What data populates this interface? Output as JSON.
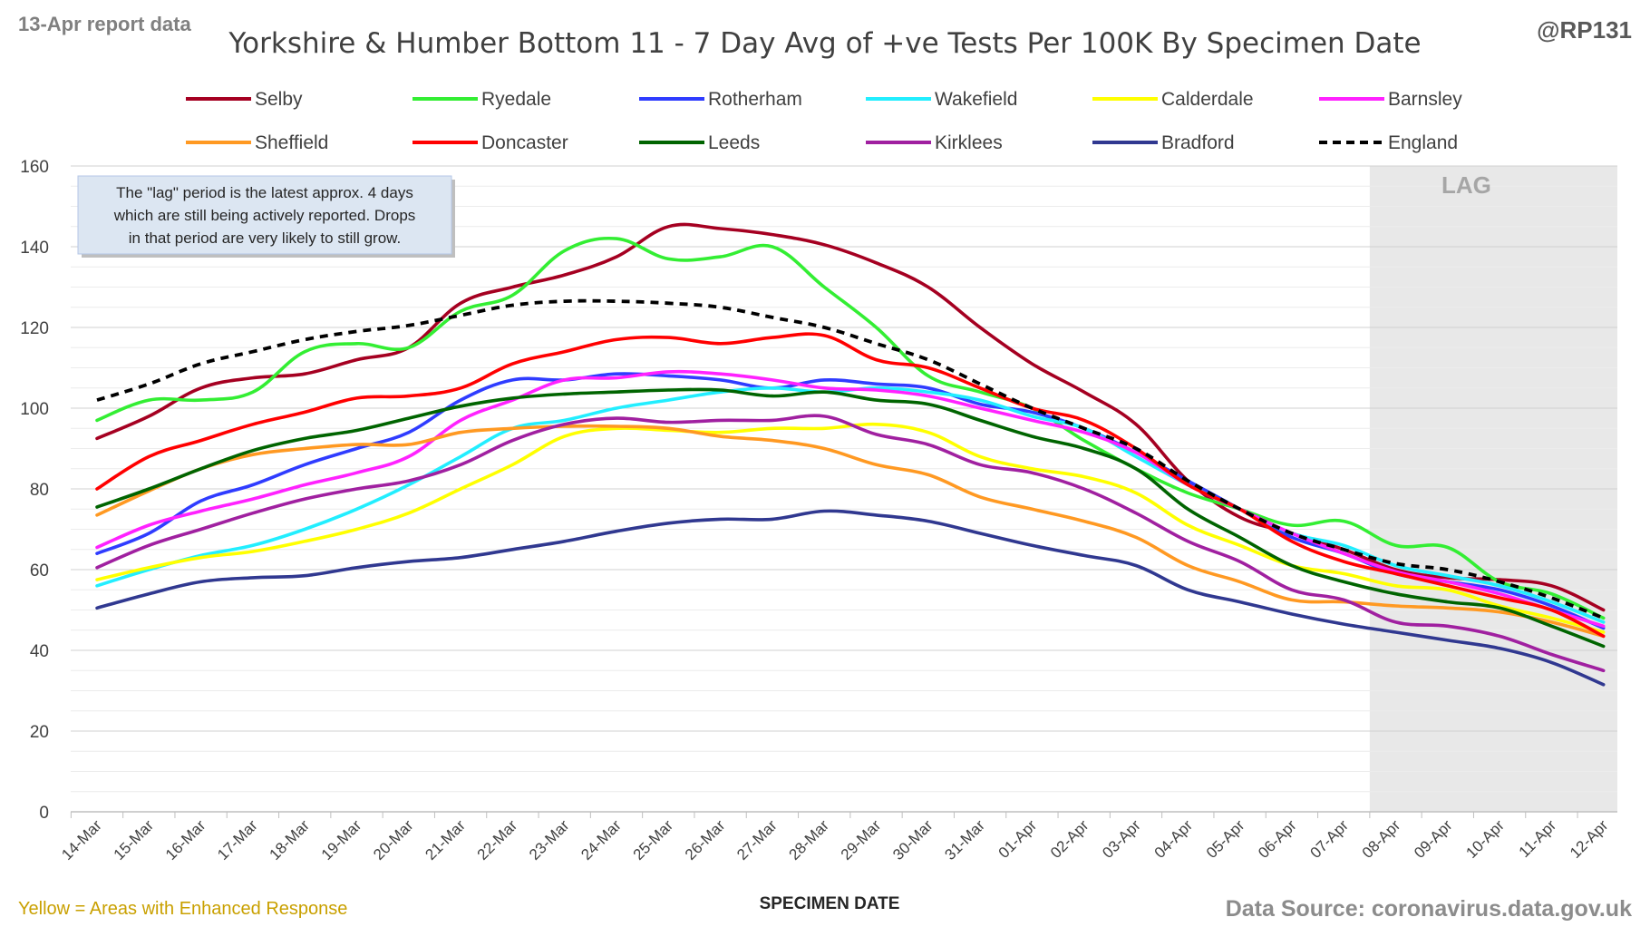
{
  "header": {
    "report_label": "13-Apr report data",
    "handle": "@RP131"
  },
  "footer": {
    "enhanced_note": "Yellow = Areas with Enhanced Response",
    "source": "Data Source: coronavirus.data.gov.uk"
  },
  "colors": {
    "lag_shade": "#e8e8e8",
    "lag_text": "#a6a6a6",
    "grid": "#d9d9d9",
    "note_bg": "#dce6f2",
    "note_border": "#8eaadb",
    "enhanced_note": "#c9a000"
  },
  "chart_data": {
    "type": "line",
    "title": "Yorkshire & Humber Bottom 11 - 7 Day Avg of +ve Tests Per 100K By Specimen Date",
    "xlabel": "SPECIMEN DATE",
    "ylabel": "",
    "ylim": [
      0,
      160
    ],
    "yticks": [
      0,
      20,
      40,
      60,
      80,
      100,
      120,
      140,
      160
    ],
    "grid": true,
    "legend_position": "top",
    "lag_label": "LAG",
    "lag_start_index": 25,
    "note": "The \"lag\" period is the latest approx. 4 days which are still being actively reported. Drops in that period are very likely to still grow.",
    "note_lines": [
      "The \"lag\" period is the latest approx. 4 days",
      "which are still being actively reported.  Drops",
      "in that period are very likely to still grow."
    ],
    "categories": [
      "14-Mar",
      "15-Mar",
      "16-Mar",
      "17-Mar",
      "18-Mar",
      "19-Mar",
      "20-Mar",
      "21-Mar",
      "22-Mar",
      "23-Mar",
      "24-Mar",
      "25-Mar",
      "26-Mar",
      "27-Mar",
      "28-Mar",
      "29-Mar",
      "30-Mar",
      "31-Mar",
      "01-Apr",
      "02-Apr",
      "03-Apr",
      "04-Apr",
      "05-Apr",
      "06-Apr",
      "07-Apr",
      "08-Apr",
      "09-Apr",
      "10-Apr",
      "11-Apr",
      "12-Apr"
    ],
    "series": [
      {
        "name": "Selby",
        "color": "#a50021",
        "dashed": false,
        "values": [
          92.5,
          98,
          105,
          107.5,
          108.5,
          112,
          115,
          126,
          130,
          133,
          137.5,
          145,
          144.5,
          143,
          140.5,
          136,
          130,
          120,
          111,
          104,
          96,
          82,
          73,
          69,
          65,
          60,
          58,
          57.5,
          56,
          50
        ]
      },
      {
        "name": "Ryedale",
        "color": "#33ee33",
        "dashed": false,
        "values": [
          97,
          102,
          102,
          104,
          114,
          116,
          115,
          124,
          128,
          139,
          142,
          137,
          137.5,
          140,
          130,
          120,
          108,
          104,
          100,
          92,
          85,
          79,
          75,
          71,
          72,
          66,
          65.5,
          57,
          54,
          48
        ]
      },
      {
        "name": "Rotherham",
        "color": "#2f3cff",
        "dashed": false,
        "values": [
          64,
          69,
          77,
          81,
          86,
          90,
          94,
          102,
          107,
          107,
          108.5,
          108,
          107,
          105,
          107,
          106,
          105,
          101,
          99,
          95,
          89,
          82,
          75,
          68,
          64,
          59,
          57,
          55,
          51,
          45.5
        ]
      },
      {
        "name": "Wakefield",
        "color": "#22eeff",
        "dashed": false,
        "values": [
          56,
          60,
          63.5,
          66,
          70,
          75,
          81,
          88,
          95,
          97,
          100,
          102,
          104,
          105,
          104,
          105,
          104,
          102,
          98,
          95,
          88,
          81,
          75,
          69,
          66,
          61,
          58.5,
          56,
          52,
          47
        ]
      },
      {
        "name": "Calderdale",
        "color": "#ffff00",
        "dashed": false,
        "values": [
          57.5,
          60.5,
          63,
          64.5,
          67,
          70,
          74,
          80,
          86,
          93,
          95,
          94.5,
          94,
          95,
          95,
          96,
          94,
          88,
          85,
          83,
          79,
          71,
          66,
          61,
          59,
          56,
          55,
          51,
          48,
          44.5
        ]
      },
      {
        "name": "Barnsley",
        "color": "#ff22ff",
        "dashed": false,
        "values": [
          65.5,
          71,
          74.5,
          77.5,
          81,
          84,
          88,
          97,
          102,
          107,
          107.5,
          109,
          108.5,
          107,
          105,
          104.5,
          103,
          100,
          97,
          94,
          89,
          81,
          75,
          69,
          64,
          59.5,
          57,
          54,
          50,
          46
        ]
      },
      {
        "name": "Sheffield",
        "color": "#ff9922",
        "dashed": false,
        "values": [
          73.5,
          79.5,
          85,
          88.5,
          90,
          91,
          91,
          94,
          95,
          95.5,
          95.5,
          95,
          93,
          92,
          90,
          86,
          83.5,
          78,
          75,
          72,
          68,
          61,
          57,
          52.5,
          52,
          51,
          50.5,
          49.5,
          47,
          43.5
        ]
      },
      {
        "name": "Doncaster",
        "color": "#ff0000",
        "dashed": false,
        "values": [
          80,
          88,
          92,
          96,
          99,
          102.5,
          103,
          105,
          111,
          114,
          117,
          117.5,
          116,
          117.5,
          118,
          112,
          110,
          105,
          100,
          97,
          90,
          81,
          75,
          67,
          62,
          59,
          56,
          53,
          50,
          43.5
        ]
      },
      {
        "name": "Leeds",
        "color": "#006400",
        "dashed": false,
        "values": [
          75.5,
          80,
          85,
          89.5,
          92.5,
          94.5,
          97.5,
          100.5,
          102.5,
          103.5,
          104,
          104.5,
          104.5,
          103,
          104,
          102,
          101,
          97,
          93,
          90,
          85,
          75,
          68,
          61,
          57,
          54,
          52,
          50.5,
          46,
          41
        ]
      },
      {
        "name": "Kirklees",
        "color": "#a020a0",
        "dashed": false,
        "values": [
          60.5,
          66,
          70,
          74,
          77.5,
          80,
          82,
          86,
          92,
          96,
          97.5,
          96.5,
          97,
          97,
          98,
          93.5,
          91,
          86,
          84,
          80,
          74,
          67,
          62,
          55,
          52.5,
          47,
          46,
          43.5,
          39,
          35
        ]
      },
      {
        "name": "Bradford",
        "color": "#303890",
        "dashed": false,
        "values": [
          50.5,
          54,
          57,
          58,
          58.5,
          60.5,
          62,
          63,
          65,
          67,
          69.5,
          71.5,
          72.5,
          72.5,
          74.5,
          73.5,
          72,
          69,
          66,
          63.5,
          61,
          55,
          52,
          49,
          46.5,
          44.5,
          42.5,
          40.5,
          37,
          31.5
        ]
      },
      {
        "name": "England",
        "color": "#000000",
        "dashed": true,
        "values": [
          102,
          106,
          111,
          114,
          117,
          119,
          120.5,
          123,
          125.5,
          126.5,
          126.5,
          126,
          125,
          122.5,
          120,
          116,
          112,
          106,
          100,
          95,
          90,
          82,
          75,
          69,
          65,
          61.5,
          60,
          57,
          53,
          48
        ]
      }
    ]
  }
}
